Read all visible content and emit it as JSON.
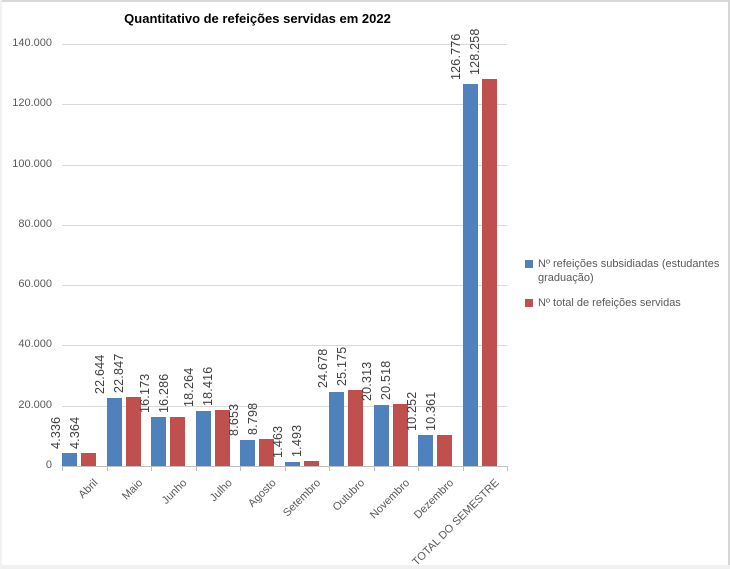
{
  "title": "Quantitativo de refeições servidas em 2022",
  "chart_data": {
    "type": "bar",
    "title": "Quantitativo de refeições servidas em 2022",
    "categories": [
      "Abril",
      "Maio",
      "Junho",
      "Julho",
      "Agosto",
      "Setembro",
      "Outubro",
      "Novembro",
      "Dezembro",
      "TOTAL DO SEMESTRE"
    ],
    "series": [
      {
        "name": "Nº refeições subsidiadas (estudantes graduação)",
        "color": "#4F81BD",
        "values": [
          4336,
          22644,
          16173,
          18264,
          8653,
          1463,
          24678,
          20313,
          10252,
          126776
        ],
        "data_labels": [
          "4.336",
          "22.644",
          "16.173",
          "18.264",
          "8.653",
          "1.463",
          "24.678",
          "20.313",
          "10.252",
          "126.776"
        ]
      },
      {
        "name": "Nº total de refeições servidas",
        "color": "#C0504D",
        "values": [
          4364,
          22847,
          16286,
          18416,
          8798,
          1493,
          25175,
          20518,
          10361,
          128258
        ],
        "data_labels": [
          "4.364",
          "22.847",
          "16.286",
          "18.416",
          "8.798",
          "1.493",
          "25.175",
          "20.518",
          "10.361",
          "128.258"
        ]
      }
    ],
    "xlabel": "",
    "ylabel": "",
    "ylim": [
      0,
      140000
    ],
    "ytick_step": 20000,
    "ytick_labels": [
      "0",
      "20.000",
      "40.000",
      "60.000",
      "80.000",
      "100.000",
      "120.000",
      "140.000"
    ],
    "grid": true,
    "legend_position": "right",
    "data_labels_rotation": 90,
    "x_labels_rotation": 45
  }
}
